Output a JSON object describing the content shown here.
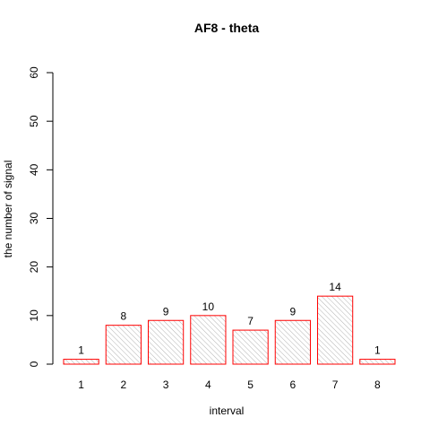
{
  "chart_data": {
    "type": "bar",
    "title": "AF8  -  theta",
    "xlabel": "interval",
    "ylabel": "the number of signal",
    "categories": [
      "1",
      "2",
      "3",
      "4",
      "5",
      "6",
      "7",
      "8"
    ],
    "values": [
      1,
      8,
      9,
      10,
      7,
      9,
      14,
      1
    ],
    "data_labels": [
      "1",
      "8",
      "9",
      "10",
      "7",
      "9",
      "14",
      "1"
    ],
    "ylim": [
      0,
      60
    ],
    "yticks": [
      "0",
      "10",
      "20",
      "30",
      "40",
      "50",
      "60"
    ],
    "grid": false,
    "legend": "none",
    "colors": {
      "bar_border": "#ff0000",
      "bar_hatch": "#a0a0a0",
      "axis": "#000000"
    }
  }
}
